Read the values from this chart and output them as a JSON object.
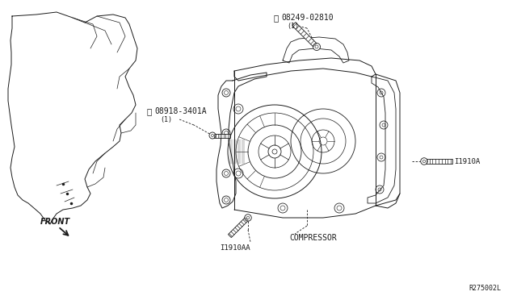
{
  "bg_color": "#ffffff",
  "line_color": "#1a1a1a",
  "fig_width": 6.4,
  "fig_height": 3.72,
  "dpi": 100,
  "ref_code": "R275002L",
  "labels": {
    "part1_id": "08249-02810",
    "part1_sym": "S",
    "part1_qty": "(1)",
    "part2_id": "08918-3401A",
    "part2_sym": "N",
    "part2_qty": "(1)",
    "compressor": "COMPRESSOR",
    "bolt1": "I1910A",
    "bolt2": "I1910AA",
    "front": "FRONT"
  },
  "font_size": 7,
  "font_color": "#1a1a1a"
}
